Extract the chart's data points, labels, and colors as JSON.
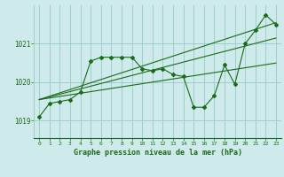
{
  "bg_color": "#ceeaea",
  "grid_color": "#9ecece",
  "line_color": "#1a6b1a",
  "xlabel": "Graphe pression niveau de la mer (hPa)",
  "ylim": [
    1018.55,
    1022.0
  ],
  "xlim": [
    -0.5,
    23.5
  ],
  "yticks": [
    1019,
    1020,
    1021
  ],
  "xticks": [
    0,
    1,
    2,
    3,
    4,
    5,
    6,
    7,
    8,
    9,
    10,
    11,
    12,
    13,
    14,
    15,
    16,
    17,
    18,
    19,
    20,
    21,
    22,
    23
  ],
  "series": [
    [
      0,
      1019.1
    ],
    [
      1,
      1019.45
    ],
    [
      2,
      1019.5
    ],
    [
      3,
      1019.55
    ],
    [
      4,
      1019.75
    ],
    [
      5,
      1020.55
    ],
    [
      6,
      1020.65
    ],
    [
      7,
      1020.65
    ],
    [
      8,
      1020.65
    ],
    [
      9,
      1020.65
    ],
    [
      10,
      1020.35
    ],
    [
      11,
      1020.3
    ],
    [
      12,
      1020.35
    ],
    [
      13,
      1020.2
    ],
    [
      14,
      1020.15
    ],
    [
      15,
      1019.35
    ],
    [
      16,
      1019.35
    ],
    [
      17,
      1019.65
    ],
    [
      18,
      1020.45
    ],
    [
      19,
      1019.95
    ],
    [
      20,
      1021.0
    ],
    [
      21,
      1021.35
    ],
    [
      22,
      1021.75
    ],
    [
      23,
      1021.5
    ]
  ],
  "trend_line": [
    [
      0,
      1019.55
    ],
    [
      23,
      1021.55
    ]
  ],
  "extra_line1": [
    [
      0,
      1019.55
    ],
    [
      23,
      1021.15
    ]
  ],
  "extra_line2": [
    [
      0,
      1019.55
    ],
    [
      23,
      1020.5
    ]
  ]
}
